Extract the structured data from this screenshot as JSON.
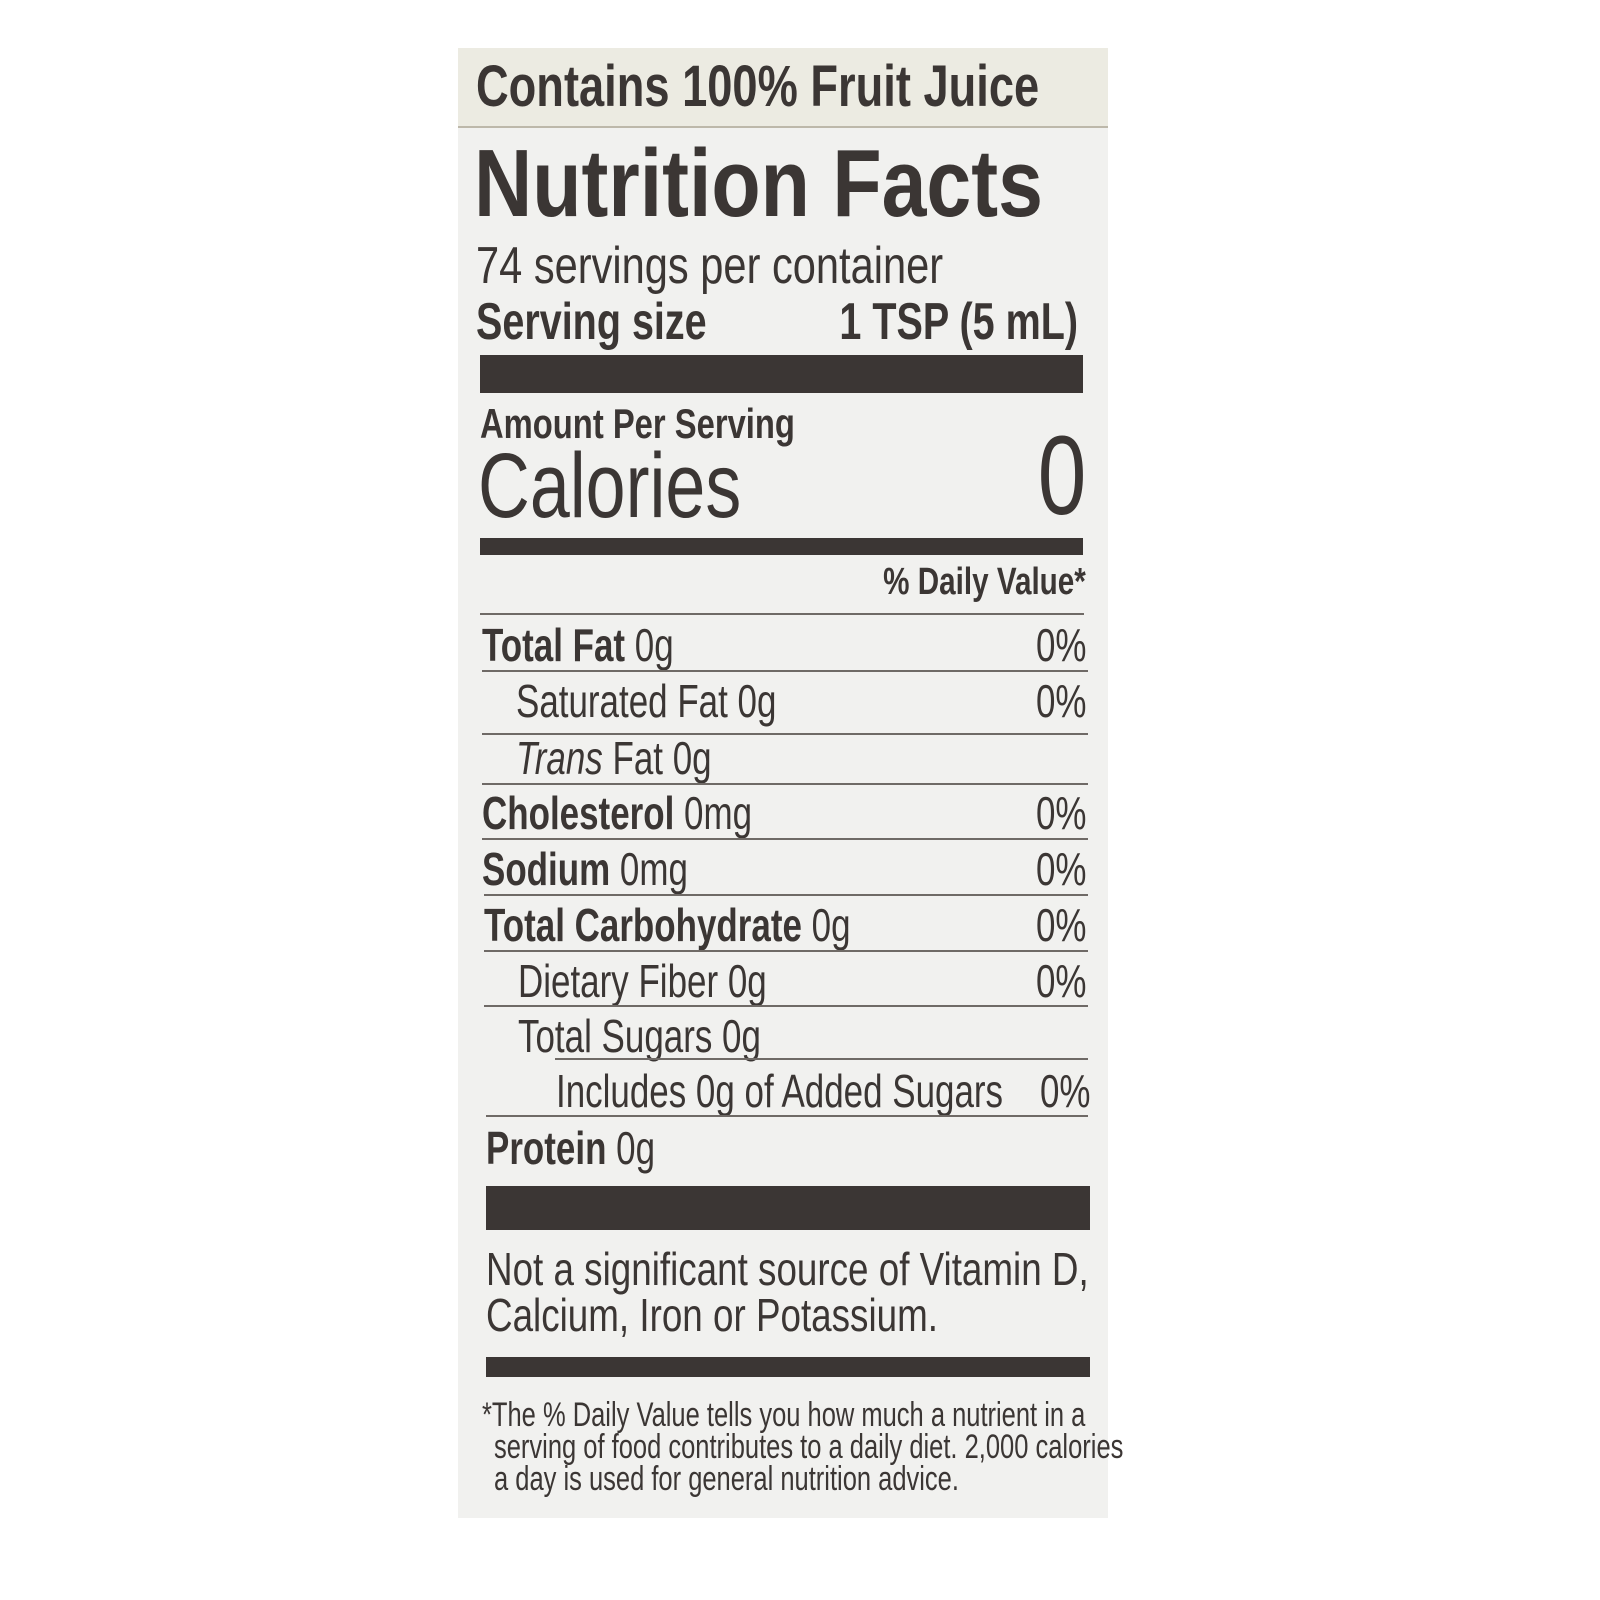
{
  "header": {
    "claim": "Contains 100% Fruit Juice"
  },
  "title": "Nutrition Facts",
  "servings_per_container": "74 servings per container",
  "serving_size": {
    "label": "Serving size",
    "value": "1 TSP (5 mL)"
  },
  "amount_per_serving": "Amount Per Serving",
  "calories": {
    "label": "Calories",
    "value": "0"
  },
  "daily_value_header": "% Daily Value*",
  "nutrients": [
    {
      "name": "Total Fat",
      "amount": "0g",
      "dv": "0%"
    },
    {
      "name": "Saturated Fat",
      "amount": "0g",
      "dv": "0%"
    },
    {
      "name": "Trans",
      "name_suffix": "Fat",
      "amount": "0g",
      "dv": ""
    },
    {
      "name": "Cholesterol",
      "amount": "0mg",
      "dv": "0%"
    },
    {
      "name": "Sodium",
      "amount": "0mg",
      "dv": "0%"
    },
    {
      "name": "Total Carbohydrate",
      "amount": "0g",
      "dv": "0%"
    },
    {
      "name": "Dietary Fiber",
      "amount": "0g",
      "dv": "0%"
    },
    {
      "name": "Total Sugars",
      "amount": "0g",
      "dv": ""
    },
    {
      "name": "Includes 0g of Added Sugars",
      "amount": "",
      "dv": "0%"
    },
    {
      "name": "Protein",
      "amount": "0g",
      "dv": ""
    }
  ],
  "vitamins_note": [
    "Not a significant source of Vitamin D,",
    "Calcium, Iron or Potassium."
  ],
  "footnote": [
    "*The % Daily Value tells you how much a nutrient in a",
    "serving of food contributes to a daily diet. 2,000 calories",
    "a day is used for general nutrition advice."
  ],
  "colors": {
    "ink": "#3b3634",
    "panel": "#f1f1ef",
    "header_band": "#ecebe2"
  }
}
